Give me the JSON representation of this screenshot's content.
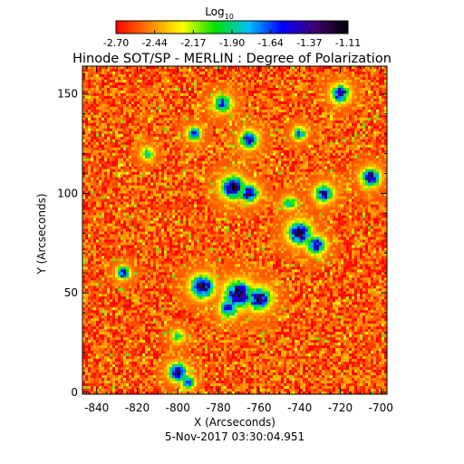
{
  "chart_data": {
    "type": "heatmap",
    "title": "Hinode SOT/SP - MERLIN : Degree of Polarization",
    "xlabel": "X (Arcseconds)",
    "ylabel": "Y (Arcseconds)",
    "footer": "5-Nov-2017 03:30:04.951",
    "colorbar": {
      "title": "Log",
      "title_subscript": "10",
      "tick_labels": [
        "-2.70",
        "-2.44",
        "-2.17",
        "-1.90",
        "-1.64",
        "-1.37",
        "-1.11"
      ],
      "range": [
        -2.7,
        -1.11
      ],
      "colormap": [
        "#ff0000",
        "#ff8000",
        "#ffff00",
        "#00e000",
        "#00c0ff",
        "#0000ff",
        "#400070",
        "#000000"
      ]
    },
    "xlim": [
      -847,
      -697
    ],
    "ylim": [
      -1,
      164
    ],
    "x_ticks": [
      -840,
      -820,
      -800,
      -780,
      -760,
      -740,
      -720,
      -700
    ],
    "x_tick_labels": [
      "-840",
      "-820",
      "-800",
      "-780",
      "-760",
      "-740",
      "-720",
      "-700"
    ],
    "y_ticks": [
      0,
      50,
      100,
      150
    ],
    "y_tick_labels": [
      "0",
      "50",
      "100",
      "150"
    ],
    "background_level": -2.55,
    "features": [
      {
        "x": -788,
        "y": 53,
        "level": -1.2,
        "spread": 5
      },
      {
        "x": -770,
        "y": 49,
        "level": -1.2,
        "spread": 6
      },
      {
        "x": -760,
        "y": 47,
        "level": -1.25,
        "spread": 5
      },
      {
        "x": -775,
        "y": 42,
        "level": -1.5,
        "spread": 4
      },
      {
        "x": -773,
        "y": 103,
        "level": -1.2,
        "spread": 5
      },
      {
        "x": -765,
        "y": 100,
        "level": -1.3,
        "spread": 4
      },
      {
        "x": -765,
        "y": 127,
        "level": -1.5,
        "spread": 4
      },
      {
        "x": -740,
        "y": 80,
        "level": -1.2,
        "spread": 5
      },
      {
        "x": -732,
        "y": 74,
        "level": -1.3,
        "spread": 4
      },
      {
        "x": -728,
        "y": 100,
        "level": -1.4,
        "spread": 4
      },
      {
        "x": -705,
        "y": 108,
        "level": -1.3,
        "spread": 4
      },
      {
        "x": -720,
        "y": 150,
        "level": -1.4,
        "spread": 4
      },
      {
        "x": -800,
        "y": 10,
        "level": -1.2,
        "spread": 4
      },
      {
        "x": -795,
        "y": 5,
        "level": -1.5,
        "spread": 3
      },
      {
        "x": -827,
        "y": 60,
        "level": -1.5,
        "spread": 3
      },
      {
        "x": -792,
        "y": 130,
        "level": -1.5,
        "spread": 3
      },
      {
        "x": -778,
        "y": 145,
        "level": -1.6,
        "spread": 4
      },
      {
        "x": -740,
        "y": 130,
        "level": -1.7,
        "spread": 3
      },
      {
        "x": -745,
        "y": 95,
        "level": -1.8,
        "spread": 3
      },
      {
        "x": -800,
        "y": 28,
        "level": -1.9,
        "spread": 3
      },
      {
        "x": -815,
        "y": 120,
        "level": -1.9,
        "spread": 3
      }
    ]
  }
}
